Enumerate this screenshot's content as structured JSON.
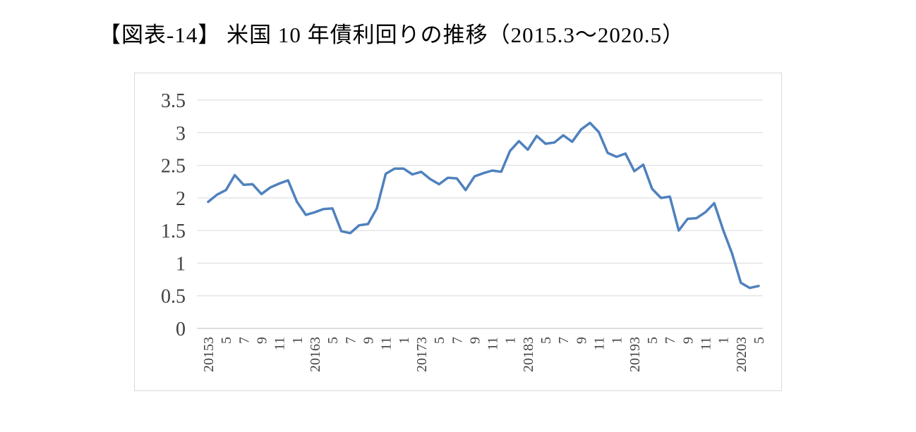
{
  "title": "【図表-14】 米国 10 年債利回りの推移（2015.3～2020.5）",
  "chart_data": {
    "type": "line",
    "title": "米国10年債利回りの推移（2015.3～2020.5）",
    "series_name": "米国10年債利回り",
    "unit": "%",
    "x_tick_every": 2,
    "x_tick_labels": [
      "20153",
      "5",
      "7",
      "9",
      "11",
      "1",
      "20163",
      "5",
      "7",
      "9",
      "11",
      "1",
      "20173",
      "5",
      "7",
      "9",
      "11",
      "1",
      "20183",
      "5",
      "7",
      "9",
      "11",
      "1",
      "20193",
      "5",
      "7",
      "9",
      "11",
      "1",
      "20203",
      "5"
    ],
    "values": [
      1.94,
      2.05,
      2.12,
      2.35,
      2.2,
      2.21,
      2.06,
      2.16,
      2.22,
      2.27,
      1.94,
      1.74,
      1.78,
      1.83,
      1.84,
      1.49,
      1.46,
      1.58,
      1.6,
      1.84,
      2.37,
      2.45,
      2.45,
      2.36,
      2.4,
      2.29,
      2.21,
      2.31,
      2.3,
      2.12,
      2.33,
      2.38,
      2.42,
      2.4,
      2.72,
      2.87,
      2.74,
      2.95,
      2.83,
      2.85,
      2.96,
      2.86,
      3.05,
      3.15,
      3.01,
      2.69,
      2.63,
      2.68,
      2.41,
      2.51,
      2.14,
      2.0,
      2.02,
      1.5,
      1.68,
      1.69,
      1.78,
      1.92,
      1.51,
      1.15,
      0.7,
      0.62,
      0.65
    ],
    "ylim": [
      0,
      3.5
    ],
    "y_ticks": [
      0,
      0.5,
      1,
      1.5,
      2,
      2.5,
      3,
      3.5
    ],
    "grid": true,
    "legend": "none",
    "line_color": "#4f81bd",
    "grid_color": "#d9d9d9",
    "axis_color": "#bfbfbf",
    "label_color": "#404040",
    "border_color": "#d9d9d9"
  }
}
